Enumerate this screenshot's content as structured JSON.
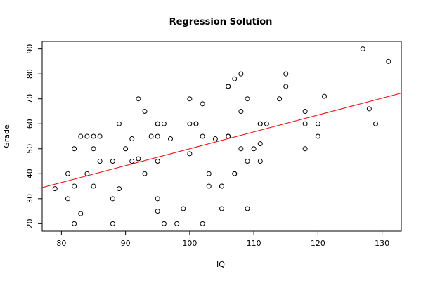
{
  "chart_data": {
    "type": "scatter",
    "title": "Regression Solution",
    "xlabel": "IQ",
    "ylabel": "Grade",
    "xlim": [
      77,
      133
    ],
    "ylim": [
      17,
      93
    ],
    "xticks": [
      80,
      90,
      100,
      110,
      120,
      130
    ],
    "yticks": [
      20,
      30,
      40,
      50,
      60,
      70,
      80,
      90
    ],
    "grid": false,
    "point_color": "#000000",
    "line_color": "#ff0000",
    "series": [
      {
        "points": [
          [
            79,
            34
          ],
          [
            81,
            40
          ],
          [
            81,
            30
          ],
          [
            82,
            50
          ],
          [
            82,
            35
          ],
          [
            82,
            20
          ],
          [
            83,
            55
          ],
          [
            83,
            24
          ],
          [
            84,
            55
          ],
          [
            84,
            40
          ],
          [
            85,
            55
          ],
          [
            85,
            50
          ],
          [
            85,
            35
          ],
          [
            86,
            55
          ],
          [
            86,
            45
          ],
          [
            88,
            45
          ],
          [
            88,
            30
          ],
          [
            88,
            20
          ],
          [
            89,
            60
          ],
          [
            89,
            34
          ],
          [
            90,
            50
          ],
          [
            91,
            54
          ],
          [
            91,
            45
          ],
          [
            92,
            70
          ],
          [
            92,
            46
          ],
          [
            93,
            65
          ],
          [
            93,
            40
          ],
          [
            94,
            55
          ],
          [
            95,
            60
          ],
          [
            95,
            60
          ],
          [
            95,
            55
          ],
          [
            95,
            45
          ],
          [
            95,
            30
          ],
          [
            95,
            25
          ],
          [
            96,
            60
          ],
          [
            96,
            20
          ],
          [
            97,
            54
          ],
          [
            98,
            20
          ],
          [
            99,
            26
          ],
          [
            100,
            70
          ],
          [
            100,
            60
          ],
          [
            100,
            48
          ],
          [
            101,
            60
          ],
          [
            101,
            60
          ],
          [
            102,
            68
          ],
          [
            102,
            55
          ],
          [
            102,
            20
          ],
          [
            103,
            40
          ],
          [
            103,
            35
          ],
          [
            104,
            54
          ],
          [
            105,
            35
          ],
          [
            105,
            35
          ],
          [
            105,
            26
          ],
          [
            106,
            75
          ],
          [
            106,
            75
          ],
          [
            106,
            55
          ],
          [
            106,
            55
          ],
          [
            107,
            78
          ],
          [
            107,
            40
          ],
          [
            107,
            40
          ],
          [
            108,
            80
          ],
          [
            108,
            65
          ],
          [
            108,
            50
          ],
          [
            109,
            70
          ],
          [
            109,
            45
          ],
          [
            109,
            26
          ],
          [
            110,
            50
          ],
          [
            111,
            60
          ],
          [
            111,
            60
          ],
          [
            111,
            52
          ],
          [
            111,
            45
          ],
          [
            112,
            60
          ],
          [
            114,
            70
          ],
          [
            115,
            80
          ],
          [
            115,
            75
          ],
          [
            118,
            65
          ],
          [
            118,
            60
          ],
          [
            118,
            50
          ],
          [
            120,
            60
          ],
          [
            120,
            55
          ],
          [
            121,
            71
          ],
          [
            127,
            90
          ],
          [
            128,
            66
          ],
          [
            129,
            60
          ],
          [
            131,
            85
          ]
        ]
      }
    ],
    "regression_line": {
      "intercept": -17.6,
      "slope": 0.676
    }
  }
}
